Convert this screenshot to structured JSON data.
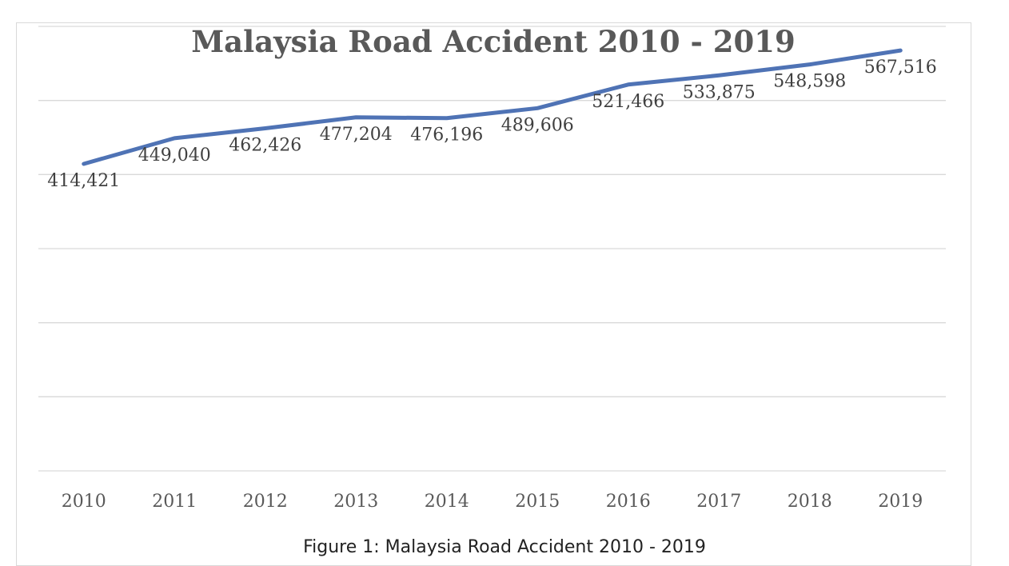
{
  "chart_data": {
    "type": "line",
    "title": "Malaysia Road Accident 2010 - 2019",
    "categories": [
      "2010",
      "2011",
      "2012",
      "2013",
      "2014",
      "2015",
      "2016",
      "2017",
      "2018",
      "2019"
    ],
    "series": [
      {
        "values": [
          414421,
          449040,
          462426,
          477204,
          476196,
          489606,
          521466,
          533875,
          548598,
          567516
        ],
        "value_labels": [
          "414,421",
          "449,040",
          "462,426",
          "477,204",
          "476,196",
          "489,606",
          "521,466",
          "533,875",
          "548,598",
          "567,516"
        ],
        "color": "#4f73b5"
      }
    ],
    "xlabel": "",
    "ylabel": "",
    "ylim": [
      0,
      600000
    ],
    "grid": true,
    "legend": "none",
    "axis_color": "#d9d9d9"
  },
  "caption": "Figure 1: Malaysia Road Accident 2010 - 2019"
}
